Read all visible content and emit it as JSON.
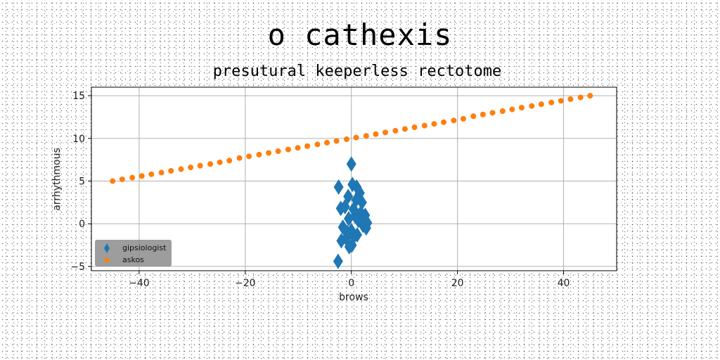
{
  "chart_data": {
    "type": "scatter",
    "title": "o cathexis",
    "subtitle": "presutural keeperless rectotome",
    "xlabel": "brows",
    "ylabel": "arrhythmous",
    "xlim": [
      -49,
      50
    ],
    "ylim": [
      -5.5,
      16
    ],
    "x_ticks": [
      -40,
      -20,
      0,
      20,
      40
    ],
    "y_ticks": [
      -5,
      0,
      5,
      10,
      15
    ],
    "x_tick_labels": [
      "−40",
      "−20",
      "0",
      "20",
      "40"
    ],
    "y_tick_labels": [
      "−5",
      "0",
      "5",
      "10",
      "15"
    ],
    "grid": true,
    "legend_position": "lower-left",
    "series": [
      {
        "name": "gipsiologist",
        "marker": "diamond",
        "color": "#1f77b4",
        "x": [
          0.0,
          -2.4,
          0.2,
          1.0,
          1.6,
          -0.6,
          0.9,
          2.0,
          -1.2,
          -2.0,
          0.4,
          1.8,
          2.6,
          0.7,
          -0.5,
          1.3,
          3.0,
          2.2,
          -1.6,
          0.0,
          2.8,
          -0.8,
          1.1,
          -1.0,
          -1.9,
          0.5,
          0.1,
          -0.4,
          -2.5
        ],
        "y": [
          7.0,
          4.3,
          4.6,
          4.3,
          3.6,
          3.2,
          2.8,
          2.5,
          2.0,
          1.8,
          1.7,
          1.3,
          1.0,
          0.9,
          0.6,
          0.4,
          0.1,
          -0.2,
          -0.4,
          -0.8,
          -0.5,
          -1.0,
          -1.3,
          -1.7,
          -2.0,
          -1.5,
          -2.5,
          -2.7,
          -4.4
        ]
      },
      {
        "name": "askos",
        "marker": "circle",
        "color": "#ff7f0e",
        "x": [
          -45.0,
          -43.2,
          -41.3,
          -39.5,
          -37.7,
          -35.8,
          -34.0,
          -32.1,
          -30.3,
          -28.5,
          -26.6,
          -24.8,
          -23.0,
          -21.1,
          -19.3,
          -17.4,
          -15.6,
          -13.8,
          -11.9,
          -10.1,
          -8.3,
          -6.4,
          -4.6,
          -2.8,
          -0.9,
          0.9,
          2.8,
          4.6,
          6.4,
          8.3,
          10.1,
          11.9,
          13.8,
          15.6,
          17.4,
          19.3,
          21.1,
          23.0,
          24.8,
          26.6,
          28.5,
          30.3,
          32.1,
          34.0,
          35.8,
          37.7,
          39.5,
          41.3,
          43.2,
          45.0
        ],
        "y": [
          5.0,
          5.2,
          5.4,
          5.6,
          5.8,
          6.0,
          6.2,
          6.4,
          6.6,
          6.8,
          7.0,
          7.2,
          7.4,
          7.7,
          7.9,
          8.1,
          8.3,
          8.5,
          8.7,
          8.9,
          9.1,
          9.3,
          9.5,
          9.7,
          9.9,
          10.1,
          10.3,
          10.5,
          10.7,
          10.9,
          11.1,
          11.3,
          11.5,
          11.7,
          11.9,
          12.1,
          12.3,
          12.6,
          12.8,
          13.0,
          13.2,
          13.4,
          13.6,
          13.8,
          14.0,
          14.2,
          14.4,
          14.6,
          14.8,
          15.0
        ]
      }
    ]
  }
}
